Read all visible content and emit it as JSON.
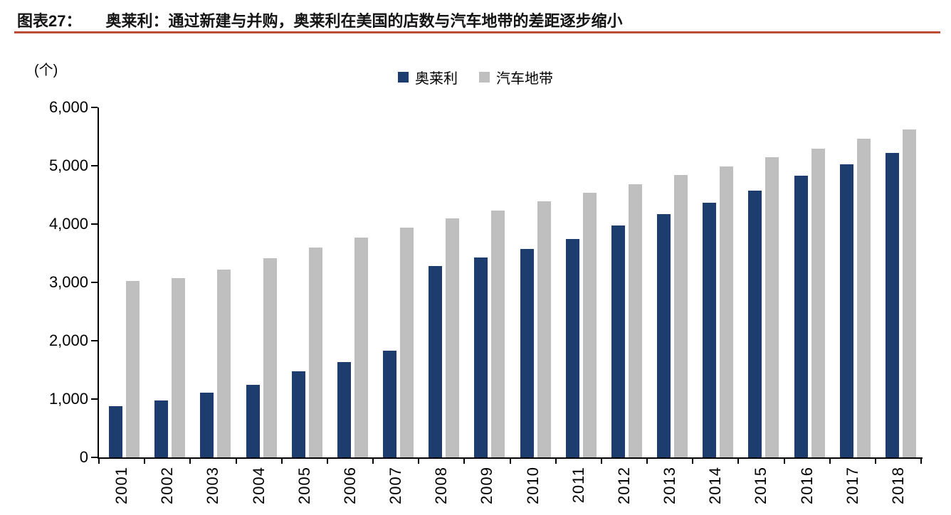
{
  "header": {
    "figure_label": "图表27：",
    "title": "奥莱利：通过新建与并购，奥莱利在美国的店数与汽车地带的差距逐步缩小",
    "rule_color": "#BE4B38"
  },
  "chart_data": {
    "type": "bar",
    "unit_label": "(个)",
    "categories": [
      "2001",
      "2002",
      "2003",
      "2004",
      "2005",
      "2006",
      "2007",
      "2008",
      "2009",
      "2010",
      "2011",
      "2012",
      "2013",
      "2014",
      "2015",
      "2016",
      "2017",
      "2018"
    ],
    "series": [
      {
        "key": "oreilly",
        "name": "奥莱利",
        "color": "#1C3D6E",
        "values": [
          875,
          981,
          1109,
          1249,
          1470,
          1640,
          1830,
          3285,
          3421,
          3570,
          3740,
          3976,
          4166,
          4366,
          4571,
          4829,
          5019,
          5219
        ]
      },
      {
        "key": "autozone",
        "name": "汽车地带",
        "color": "#BFBFBF",
        "values": [
          3019,
          3068,
          3219,
          3420,
          3592,
          3771,
          3933,
          4092,
          4229,
          4389,
          4534,
          4685,
          4836,
          4984,
          5141,
          5297,
          5465,
          5618
        ]
      }
    ],
    "ylim": [
      0,
      6000
    ],
    "ytick_step": 1000,
    "grid": false,
    "legend_position": "top-center",
    "axis_color": "#000000"
  }
}
